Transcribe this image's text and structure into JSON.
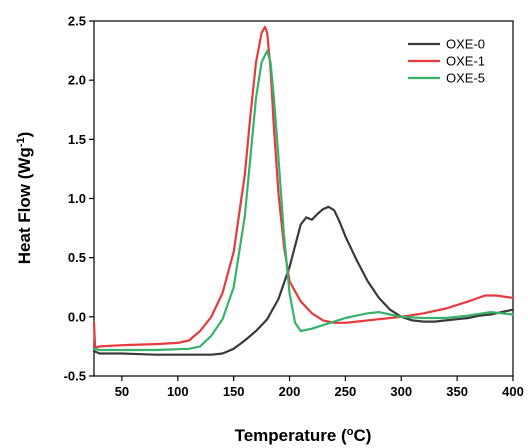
{
  "chart_data": {
    "type": "line",
    "title": "",
    "xlabel": "Temperature (",
    "xlabel_sup": "o",
    "xlabel_tail": "C)",
    "ylabel": "Heat Flow (Wg",
    "ylabel_sup": "-1",
    "ylabel_tail": ")",
    "xlim": [
      25,
      400
    ],
    "ylim": [
      -0.5,
      2.5
    ],
    "x_ticks": [
      50,
      100,
      150,
      200,
      250,
      300,
      350,
      400
    ],
    "y_ticks": [
      -0.5,
      0.0,
      0.5,
      1.0,
      1.5,
      2.0,
      2.5
    ],
    "x_tick_labels": [
      "50",
      "100",
      "150",
      "200",
      "250",
      "300",
      "350",
      "400"
    ],
    "y_tick_labels": [
      "-0.5",
      "0.0",
      "0.5",
      "1.0",
      "1.5",
      "2.0",
      "2.5"
    ],
    "grid": false,
    "legend_position": "top-right",
    "series": [
      {
        "name": "OXE-0",
        "color": "#3a3a3a",
        "x": [
          25,
          30,
          50,
          80,
          110,
          130,
          140,
          150,
          160,
          170,
          180,
          190,
          200,
          205,
          210,
          215,
          220,
          225,
          230,
          235,
          240,
          245,
          250,
          260,
          270,
          280,
          290,
          300,
          310,
          320,
          330,
          340,
          350,
          360,
          370,
          380,
          390,
          400
        ],
        "y": [
          -0.29,
          -0.31,
          -0.31,
          -0.32,
          -0.32,
          -0.32,
          -0.31,
          -0.27,
          -0.2,
          -0.12,
          -0.02,
          0.15,
          0.42,
          0.6,
          0.78,
          0.84,
          0.82,
          0.87,
          0.91,
          0.93,
          0.9,
          0.8,
          0.68,
          0.48,
          0.3,
          0.16,
          0.06,
          0.0,
          -0.03,
          -0.04,
          -0.04,
          -0.03,
          -0.02,
          -0.01,
          0.01,
          0.02,
          0.04,
          0.06
        ]
      },
      {
        "name": "OXE-1",
        "color": "#e8393c",
        "x": [
          25,
          26,
          30,
          50,
          80,
          100,
          110,
          120,
          130,
          140,
          150,
          160,
          165,
          170,
          175,
          178,
          180,
          183,
          186,
          190,
          195,
          200,
          210,
          220,
          230,
          240,
          250,
          260,
          280,
          300,
          320,
          340,
          360,
          375,
          385,
          400
        ],
        "y": [
          -0.05,
          -0.26,
          -0.25,
          -0.24,
          -0.23,
          -0.22,
          -0.2,
          -0.12,
          0.0,
          0.2,
          0.55,
          1.2,
          1.7,
          2.15,
          2.4,
          2.45,
          2.4,
          2.1,
          1.6,
          1.05,
          0.6,
          0.3,
          0.13,
          0.03,
          -0.03,
          -0.05,
          -0.05,
          -0.04,
          -0.02,
          0.0,
          0.03,
          0.07,
          0.13,
          0.18,
          0.18,
          0.16
        ]
      },
      {
        "name": "OXE-5",
        "color": "#36b26b",
        "x": [
          25,
          30,
          50,
          80,
          110,
          120,
          130,
          140,
          150,
          160,
          165,
          170,
          175,
          180,
          183,
          186,
          190,
          195,
          200,
          205,
          210,
          220,
          230,
          240,
          250,
          260,
          270,
          280,
          290,
          300,
          320,
          340,
          360,
          380,
          390,
          400
        ],
        "y": [
          -0.27,
          -0.28,
          -0.28,
          -0.28,
          -0.27,
          -0.25,
          -0.16,
          -0.02,
          0.25,
          0.85,
          1.35,
          1.85,
          2.15,
          2.25,
          2.15,
          1.85,
          1.35,
          0.7,
          0.2,
          -0.05,
          -0.12,
          -0.1,
          -0.07,
          -0.04,
          -0.01,
          0.01,
          0.03,
          0.04,
          0.02,
          0.0,
          -0.01,
          -0.01,
          0.01,
          0.04,
          0.03,
          0.02
        ]
      }
    ]
  }
}
